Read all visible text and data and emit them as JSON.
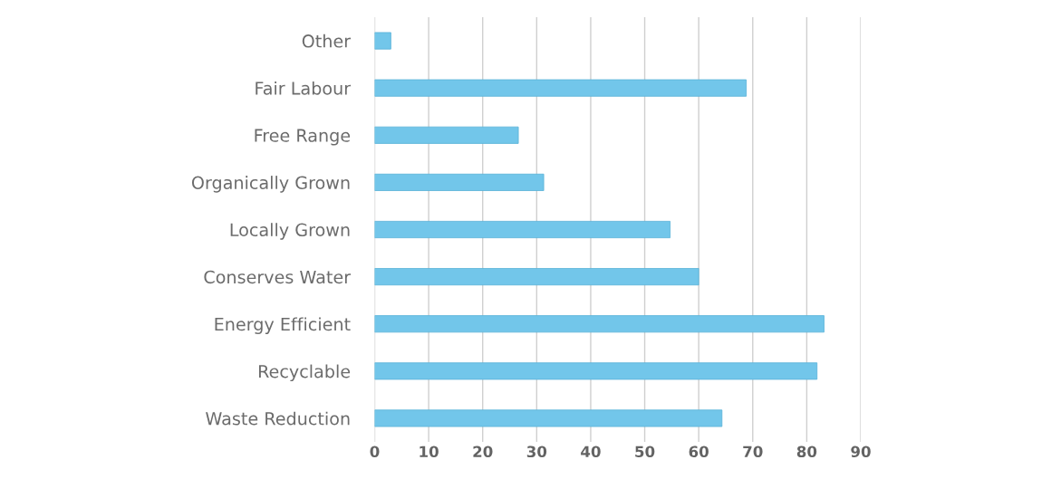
{
  "chart_data": {
    "type": "bar",
    "orientation": "horizontal",
    "categories": [
      "Other",
      "Fair Labour",
      "Free Range",
      "Organically Grown",
      "Locally Grown",
      "Conserves Water",
      "Energy Efficient",
      "Recyclable",
      "Waste Reduction"
    ],
    "values": [
      3,
      68.8,
      26.6,
      31.3,
      54.7,
      60,
      83.2,
      81.9,
      64.3
    ],
    "color": "#72c6ea",
    "xlim": [
      0,
      90
    ],
    "xticks": [
      0,
      10,
      20,
      30,
      40,
      50,
      60,
      70,
      80,
      90
    ],
    "grid": "x"
  }
}
